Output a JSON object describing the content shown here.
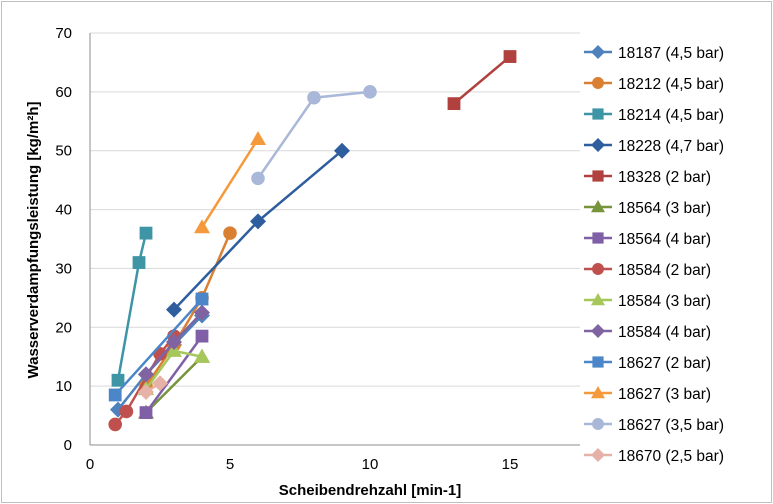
{
  "chart_data": {
    "type": "line",
    "title": "",
    "xlabel": "Scheibendrehzahl  [min-1]",
    "ylabel": "Wasserverdampfungsleistung  [kg/m²h]",
    "xlim": [
      0,
      17.5
    ],
    "ylim": [
      0,
      70
    ],
    "x_ticks": [
      "0",
      "5",
      "10",
      "15"
    ],
    "y_ticks": [
      "0",
      "10",
      "20",
      "30",
      "40",
      "50",
      "60",
      "70"
    ],
    "grid": "horizontal",
    "legend_position": "right",
    "series": [
      {
        "name": "18187 (4,5 bar)",
        "color": "#4f81bd",
        "marker": "diamond",
        "x": [
          1,
          2,
          3,
          4
        ],
        "y": [
          6,
          12,
          17,
          22
        ]
      },
      {
        "name": "18212 (4,5 bar)",
        "color": "#d98033",
        "marker": "circle",
        "x": [
          2,
          3,
          4,
          5
        ],
        "y": [
          10,
          17,
          25,
          36
        ]
      },
      {
        "name": "18214 (4,5 bar)",
        "color": "#3d95a6",
        "marker": "square",
        "x": [
          1,
          1.75,
          2
        ],
        "y": [
          11,
          31,
          36
        ]
      },
      {
        "name": "18228 (4,7 bar)",
        "color": "#2e5e9e",
        "marker": "diamond",
        "x": [
          3,
          6,
          9
        ],
        "y": [
          23,
          38,
          50
        ]
      },
      {
        "name": "18328 (2 bar)",
        "color": "#b0413e",
        "marker": "square",
        "x": [
          13,
          15
        ],
        "y": [
          58,
          66
        ]
      },
      {
        "name": "18564 (3 bar)",
        "color": "#77933c",
        "marker": "triangle",
        "x": [
          2,
          4
        ],
        "y": [
          5.5,
          15
        ]
      },
      {
        "name": "18564 (4 bar)",
        "color": "#7f60a6",
        "marker": "square",
        "x": [
          2,
          4
        ],
        "y": [
          5.5,
          18.5
        ]
      },
      {
        "name": "18584 (2 bar)",
        "color": "#c0504d",
        "marker": "circle",
        "x": [
          0.9,
          1.3,
          2.5,
          3
        ],
        "y": [
          3.5,
          5.7,
          15.5,
          18.5
        ]
      },
      {
        "name": "18584 (3 bar)",
        "color": "#a6c85a",
        "marker": "triangle",
        "x": [
          2,
          3,
          4
        ],
        "y": [
          9.5,
          16,
          15
        ]
      },
      {
        "name": "18584 (4 bar)",
        "color": "#8064a2",
        "marker": "diamond",
        "x": [
          2,
          3,
          4
        ],
        "y": [
          12,
          17.5,
          22.5
        ]
      },
      {
        "name": "18627 (2 bar)",
        "color": "#4a86c8",
        "marker": "square",
        "x": [
          0.9,
          4
        ],
        "y": [
          8.5,
          24.8
        ]
      },
      {
        "name": "18627 (3 bar)",
        "color": "#f59a3c",
        "marker": "triangle",
        "x": [
          4,
          6
        ],
        "y": [
          37,
          52
        ]
      },
      {
        "name": "18627 (3,5 bar)",
        "color": "#a9b8d8",
        "marker": "circle",
        "x": [
          6,
          8,
          10
        ],
        "y": [
          45.3,
          59,
          60
        ]
      },
      {
        "name": "18670 (2,5 bar)",
        "color": "#e6b2a8",
        "marker": "diamond",
        "x": [
          2,
          2.5
        ],
        "y": [
          9,
          10.5
        ]
      }
    ]
  }
}
